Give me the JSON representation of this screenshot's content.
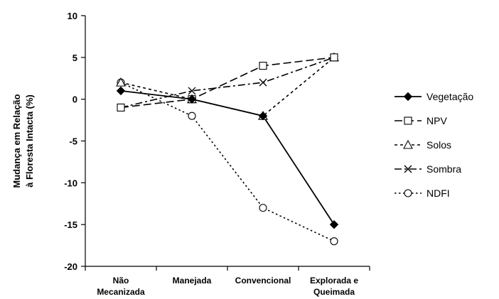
{
  "chart_data": {
    "type": "line",
    "categories": [
      [
        "Não",
        "Mecanizada"
      ],
      [
        "Manejada"
      ],
      [
        "Convencional"
      ],
      [
        "Explorada e",
        "Queimada"
      ]
    ],
    "ylabel": [
      "Mudança em Relação",
      "à Floresta Intacta (%)"
    ],
    "ylim": [
      -20,
      10
    ],
    "yticks": [
      10,
      5,
      0,
      -5,
      -10,
      -15,
      -20
    ],
    "grid": false,
    "legend_position": "right",
    "series": [
      {
        "name": "Vegetação",
        "values": [
          1,
          0,
          -2,
          -15
        ],
        "marker": "diamond-filled",
        "dash": "solid"
      },
      {
        "name": "NPV",
        "values": [
          -1,
          0,
          4,
          5
        ],
        "marker": "square-open",
        "dash": "longdash"
      },
      {
        "name": "Solos",
        "values": [
          2,
          0,
          -2,
          5
        ],
        "marker": "triangle-open",
        "dash": "shortdash"
      },
      {
        "name": "Sombra",
        "values": [
          -1,
          1,
          2,
          5
        ],
        "marker": "x",
        "dash": "dashdot"
      },
      {
        "name": "NDFI",
        "values": [
          2,
          -2,
          -13,
          -17
        ],
        "marker": "circle-open",
        "dash": "dotted"
      }
    ]
  }
}
